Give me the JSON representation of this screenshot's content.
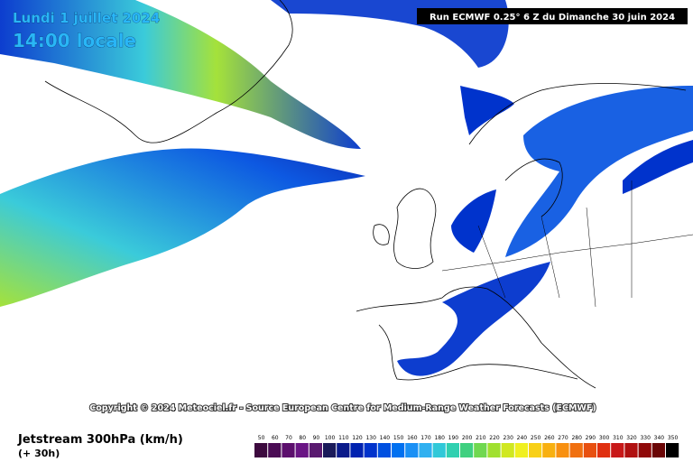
{
  "header": {
    "date": "Lundi 1 juillet 2024",
    "time": "14:00 locale",
    "run": "Run ECMWF 0.25° 6 Z du Dimanche 30 juin 2024"
  },
  "copyright": "Copyright © 2024 Meteociel.fr - Source European Centre for Medium-Range Weather Forecasts (ECMWF)",
  "legend": {
    "title": "Jetstream 300hPa (km/h)",
    "subtitle": "(+ 30h)",
    "scale": [
      {
        "value": 50,
        "color": "#3d0a3f"
      },
      {
        "value": 60,
        "color": "#4b0c55"
      },
      {
        "value": 70,
        "color": "#5c0f6d"
      },
      {
        "value": 80,
        "color": "#6a1585"
      },
      {
        "value": 90,
        "color": "#5a1a70"
      },
      {
        "value": 100,
        "color": "#1a1a5a"
      },
      {
        "value": 110,
        "color": "#0a1a8a"
      },
      {
        "value": 120,
        "color": "#0022b0"
      },
      {
        "value": 130,
        "color": "#0033cc"
      },
      {
        "value": 140,
        "color": "#0050e0"
      },
      {
        "value": 150,
        "color": "#0070f0"
      },
      {
        "value": 160,
        "color": "#1a90f5"
      },
      {
        "value": 170,
        "color": "#30b0f0"
      },
      {
        "value": 180,
        "color": "#30c8d8"
      },
      {
        "value": 190,
        "color": "#30d0b0"
      },
      {
        "value": 200,
        "color": "#40d080"
      },
      {
        "value": 210,
        "color": "#70d850"
      },
      {
        "value": 220,
        "color": "#a0e030"
      },
      {
        "value": 230,
        "color": "#d0e820"
      },
      {
        "value": 240,
        "color": "#f0f020"
      },
      {
        "value": 250,
        "color": "#f8d018"
      },
      {
        "value": 260,
        "color": "#f8b010"
      },
      {
        "value": 270,
        "color": "#f89010"
      },
      {
        "value": 280,
        "color": "#f07010"
      },
      {
        "value": 290,
        "color": "#e85010"
      },
      {
        "value": 300,
        "color": "#e03010"
      },
      {
        "value": 310,
        "color": "#c81818"
      },
      {
        "value": 320,
        "color": "#b01010"
      },
      {
        "value": 330,
        "color": "#900a0a"
      },
      {
        "value": 340,
        "color": "#6a0505"
      },
      {
        "value": 350,
        "color": "#000000"
      }
    ]
  }
}
